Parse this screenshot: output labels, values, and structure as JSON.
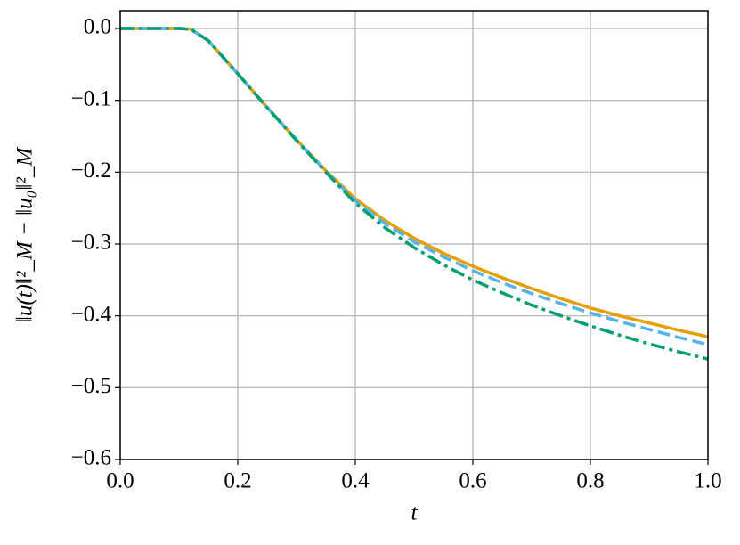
{
  "chart_data": {
    "type": "line",
    "x_label": "t",
    "y_label": "‖u(t)‖²_M − ‖u₀‖²_M",
    "x": [
      0,
      0.05,
      0.1,
      0.12,
      0.15,
      0.2,
      0.25,
      0.3,
      0.35,
      0.4,
      0.45,
      0.5,
      0.55,
      0.6,
      0.65,
      0.7,
      0.75,
      0.8,
      0.85,
      0.9,
      0.95,
      1.0
    ],
    "series": [
      {
        "color": "#E69F00",
        "dash": "solid",
        "values": [
          0,
          0,
          0,
          -0.001,
          -0.017,
          -0.063,
          -0.11,
          -0.155,
          -0.198,
          -0.237,
          -0.267,
          -0.292,
          -0.313,
          -0.331,
          -0.347,
          -0.362,
          -0.376,
          -0.389,
          -0.4,
          -0.41,
          -0.42,
          -0.429
        ]
      },
      {
        "color": "#56B4E9",
        "dash": "dashed",
        "values": [
          0,
          0,
          0,
          -0.001,
          -0.017,
          -0.063,
          -0.11,
          -0.155,
          -0.199,
          -0.24,
          -0.271,
          -0.297,
          -0.318,
          -0.337,
          -0.354,
          -0.369,
          -0.383,
          -0.396,
          -0.408,
          -0.419,
          -0.43,
          -0.44
        ]
      },
      {
        "color": "#009E73",
        "dash": "dashdot",
        "values": [
          0,
          0,
          0,
          -0.001,
          -0.017,
          -0.063,
          -0.11,
          -0.156,
          -0.2,
          -0.243,
          -0.277,
          -0.305,
          -0.329,
          -0.35,
          -0.368,
          -0.385,
          -0.4,
          -0.414,
          -0.427,
          -0.439,
          -0.45,
          -0.46
        ]
      }
    ],
    "xlim": [
      0,
      1
    ],
    "ylim": [
      -0.6,
      0
    ],
    "xticks": [
      {
        "value": 0,
        "label": "0.0"
      },
      {
        "value": 0.2,
        "label": "0.2"
      },
      {
        "value": 0.4,
        "label": "0.4"
      },
      {
        "value": 0.6,
        "label": "0.6"
      },
      {
        "value": 0.8,
        "label": "0.8"
      },
      {
        "value": 1.0,
        "label": "1.0"
      }
    ],
    "yticks": [
      {
        "value": -0.6,
        "label": "−0.6"
      },
      {
        "value": -0.5,
        "label": "−0.5"
      },
      {
        "value": -0.4,
        "label": "−0.4"
      },
      {
        "value": -0.3,
        "label": "−0.3"
      },
      {
        "value": -0.2,
        "label": "−0.2"
      },
      {
        "value": -0.1,
        "label": "−0.1"
      },
      {
        "value": 0,
        "label": "0.0"
      }
    ],
    "grid": true
  }
}
